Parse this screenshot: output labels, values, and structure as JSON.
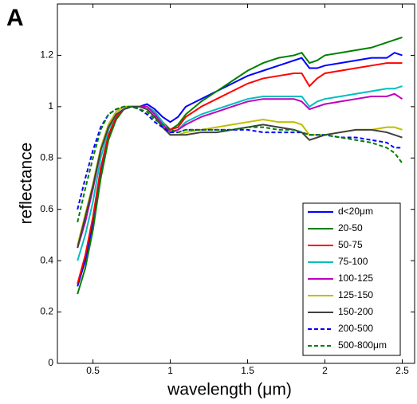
{
  "chart_data": {
    "type": "line",
    "panel_label": "A",
    "xlabel": "wavelength (μm)",
    "ylabel": "reflectance",
    "x": [
      0.4,
      0.45,
      0.5,
      0.55,
      0.6,
      0.65,
      0.7,
      0.75,
      0.8,
      0.85,
      0.9,
      0.95,
      1.0,
      1.05,
      1.1,
      1.2,
      1.3,
      1.4,
      1.5,
      1.6,
      1.7,
      1.8,
      1.85,
      1.9,
      1.95,
      2.0,
      2.1,
      2.2,
      2.3,
      2.4,
      2.45,
      2.5
    ],
    "xlim": [
      0.27,
      2.58
    ],
    "xticks": [
      0.5,
      1,
      1.5,
      2,
      2.5
    ],
    "ylim": [
      0,
      1.4
    ],
    "yticks": [
      0,
      0.2,
      0.4,
      0.6,
      0.8,
      1,
      1.2
    ],
    "legend": "lower right",
    "series": [
      {
        "name": "d<20μm",
        "color": "#0000ff",
        "line_style": "solid",
        "values": [
          0.3,
          0.4,
          0.55,
          0.75,
          0.88,
          0.96,
          0.99,
          1.0,
          1.0,
          1.01,
          0.99,
          0.96,
          0.94,
          0.96,
          1.0,
          1.03,
          1.06,
          1.09,
          1.12,
          1.14,
          1.16,
          1.18,
          1.19,
          1.15,
          1.15,
          1.16,
          1.17,
          1.18,
          1.19,
          1.19,
          1.21,
          1.2
        ]
      },
      {
        "name": "20-50",
        "color": "#008000",
        "line_style": "solid",
        "values": [
          0.27,
          0.37,
          0.52,
          0.72,
          0.87,
          0.95,
          0.99,
          1.0,
          1.0,
          1.0,
          0.98,
          0.94,
          0.91,
          0.93,
          0.97,
          1.02,
          1.06,
          1.1,
          1.14,
          1.17,
          1.19,
          1.2,
          1.21,
          1.17,
          1.18,
          1.2,
          1.21,
          1.22,
          1.23,
          1.25,
          1.26,
          1.27
        ]
      },
      {
        "name": "50-75",
        "color": "#ff0000",
        "line_style": "solid",
        "values": [
          0.31,
          0.42,
          0.57,
          0.76,
          0.89,
          0.96,
          0.99,
          1.0,
          1.0,
          1.0,
          0.98,
          0.94,
          0.91,
          0.92,
          0.96,
          1.0,
          1.03,
          1.06,
          1.09,
          1.11,
          1.12,
          1.13,
          1.13,
          1.08,
          1.11,
          1.13,
          1.14,
          1.15,
          1.16,
          1.17,
          1.17,
          1.17
        ]
      },
      {
        "name": "75-100",
        "color": "#00bfbf",
        "line_style": "solid",
        "values": [
          0.4,
          0.5,
          0.63,
          0.8,
          0.91,
          0.97,
          0.99,
          1.0,
          1.0,
          1.0,
          0.98,
          0.94,
          0.9,
          0.91,
          0.94,
          0.97,
          0.99,
          1.01,
          1.03,
          1.04,
          1.04,
          1.04,
          1.04,
          1.0,
          1.02,
          1.03,
          1.04,
          1.05,
          1.06,
          1.07,
          1.07,
          1.08
        ]
      },
      {
        "name": "100-125",
        "color": "#bf00bf",
        "line_style": "solid",
        "values": [
          0.45,
          0.55,
          0.68,
          0.83,
          0.93,
          0.98,
          1.0,
          1.0,
          1.0,
          1.0,
          0.97,
          0.93,
          0.9,
          0.91,
          0.93,
          0.96,
          0.98,
          1.0,
          1.02,
          1.03,
          1.03,
          1.03,
          1.02,
          0.99,
          1.0,
          1.01,
          1.02,
          1.03,
          1.04,
          1.04,
          1.05,
          1.03
        ]
      },
      {
        "name": "125-150",
        "color": "#bfbf00",
        "line_style": "solid",
        "values": [
          0.46,
          0.58,
          0.7,
          0.84,
          0.93,
          0.98,
          1.0,
          1.0,
          1.0,
          0.99,
          0.96,
          0.92,
          0.89,
          0.89,
          0.9,
          0.91,
          0.92,
          0.93,
          0.94,
          0.95,
          0.94,
          0.94,
          0.93,
          0.89,
          0.89,
          0.89,
          0.9,
          0.91,
          0.91,
          0.92,
          0.92,
          0.91
        ]
      },
      {
        "name": "150-200",
        "color": "#404040",
        "line_style": "solid",
        "values": [
          0.45,
          0.57,
          0.69,
          0.83,
          0.92,
          0.97,
          0.99,
          1.0,
          1.0,
          0.99,
          0.96,
          0.92,
          0.89,
          0.89,
          0.89,
          0.9,
          0.9,
          0.91,
          0.92,
          0.93,
          0.92,
          0.91,
          0.9,
          0.87,
          0.88,
          0.89,
          0.9,
          0.91,
          0.91,
          0.9,
          0.89,
          0.88
        ]
      },
      {
        "name": "200-500",
        "color": "#0000ff",
        "line_style": "dashed",
        "values": [
          0.6,
          0.72,
          0.83,
          0.92,
          0.97,
          0.99,
          1.0,
          1.0,
          0.99,
          0.97,
          0.94,
          0.92,
          0.9,
          0.9,
          0.91,
          0.91,
          0.91,
          0.91,
          0.91,
          0.9,
          0.9,
          0.9,
          0.9,
          0.89,
          0.89,
          0.89,
          0.88,
          0.88,
          0.87,
          0.86,
          0.84,
          0.84
        ]
      },
      {
        "name": "500-800μm",
        "color": "#008000",
        "line_style": "dashed",
        "values": [
          0.55,
          0.68,
          0.8,
          0.91,
          0.97,
          0.99,
          1.0,
          1.0,
          0.99,
          0.98,
          0.95,
          0.93,
          0.91,
          0.9,
          0.91,
          0.91,
          0.91,
          0.91,
          0.92,
          0.92,
          0.91,
          0.91,
          0.9,
          0.89,
          0.89,
          0.89,
          0.88,
          0.87,
          0.86,
          0.84,
          0.82,
          0.78
        ]
      }
    ]
  }
}
